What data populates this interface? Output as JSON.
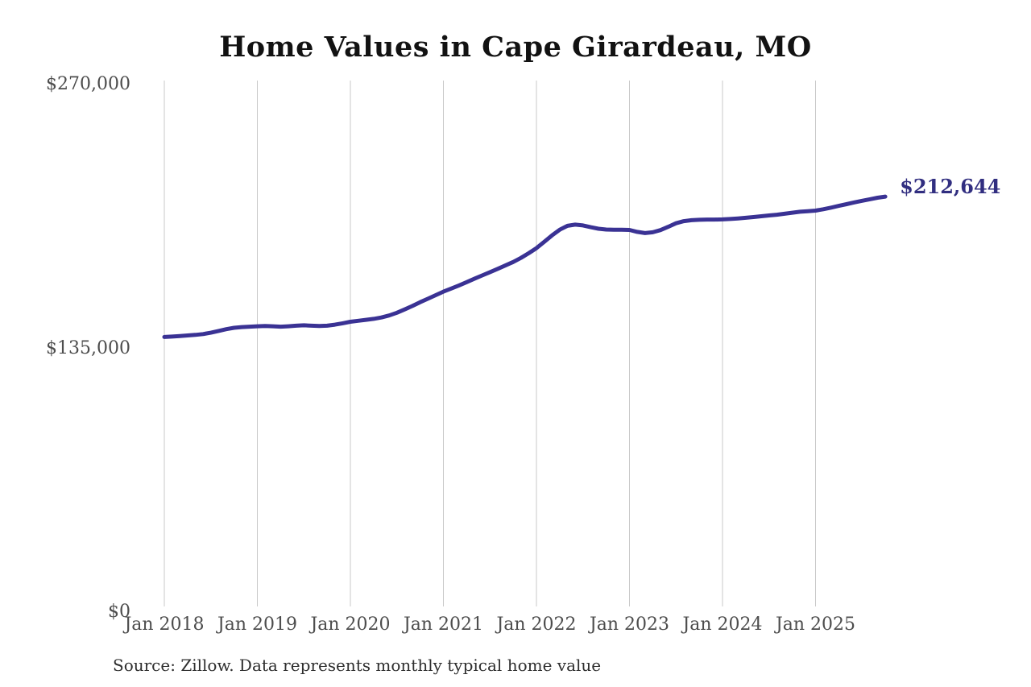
{
  "chart_data": {
    "type": "line",
    "title": "Home Values in Cape Girardeau, MO",
    "source": "Source: Zillow. Data represents monthly typical home value",
    "end_label": "$212,644",
    "end_value": 212644,
    "ylim": [
      0,
      270000
    ],
    "y_tick_labels": [
      "$270,000",
      "$135,000",
      "$0"
    ],
    "x_tick_labels": [
      "Jan 2018",
      "Jan 2019",
      "Jan 2020",
      "Jan 2021",
      "Jan 2022",
      "Jan 2023",
      "Jan 2024",
      "Jan 2025"
    ],
    "x_start_month": "2018-01",
    "x_end_month": "2025-10",
    "grid": "vertical-only",
    "legend": "none",
    "colors": {
      "line": "#3a3294",
      "end_label": "#312e80",
      "gridline": "#c9c9c9",
      "tick_text": "#4d4d4d",
      "title_text": "#121212"
    },
    "series": [
      {
        "name": "Typical home value (USD, monthly)",
        "monthly_values": [
          140800,
          141000,
          141300,
          141600,
          141900,
          142300,
          143000,
          143900,
          144800,
          145500,
          145900,
          146100,
          146300,
          146400,
          146300,
          146100,
          146300,
          146600,
          146800,
          146600,
          146400,
          146600,
          147100,
          147800,
          148600,
          149100,
          149600,
          150100,
          150800,
          151800,
          153200,
          154900,
          156700,
          158600,
          160400,
          162200,
          164000,
          165600,
          167200,
          168900,
          170600,
          172300,
          174000,
          175700,
          177400,
          179200,
          181300,
          183700,
          186300,
          189500,
          192800,
          195700,
          197700,
          198300,
          197900,
          197000,
          196200,
          195800,
          195700,
          195700,
          195600,
          194600,
          194000,
          194400,
          195500,
          197200,
          199000,
          200100,
          200600,
          200800,
          200900,
          200900,
          201000,
          201200,
          201500,
          201800,
          202200,
          202600,
          203000,
          203400,
          203900,
          204400,
          204900,
          205200,
          205500,
          206200,
          207000,
          207900,
          208800,
          209700,
          210500,
          211300,
          212100,
          212644
        ]
      }
    ]
  }
}
